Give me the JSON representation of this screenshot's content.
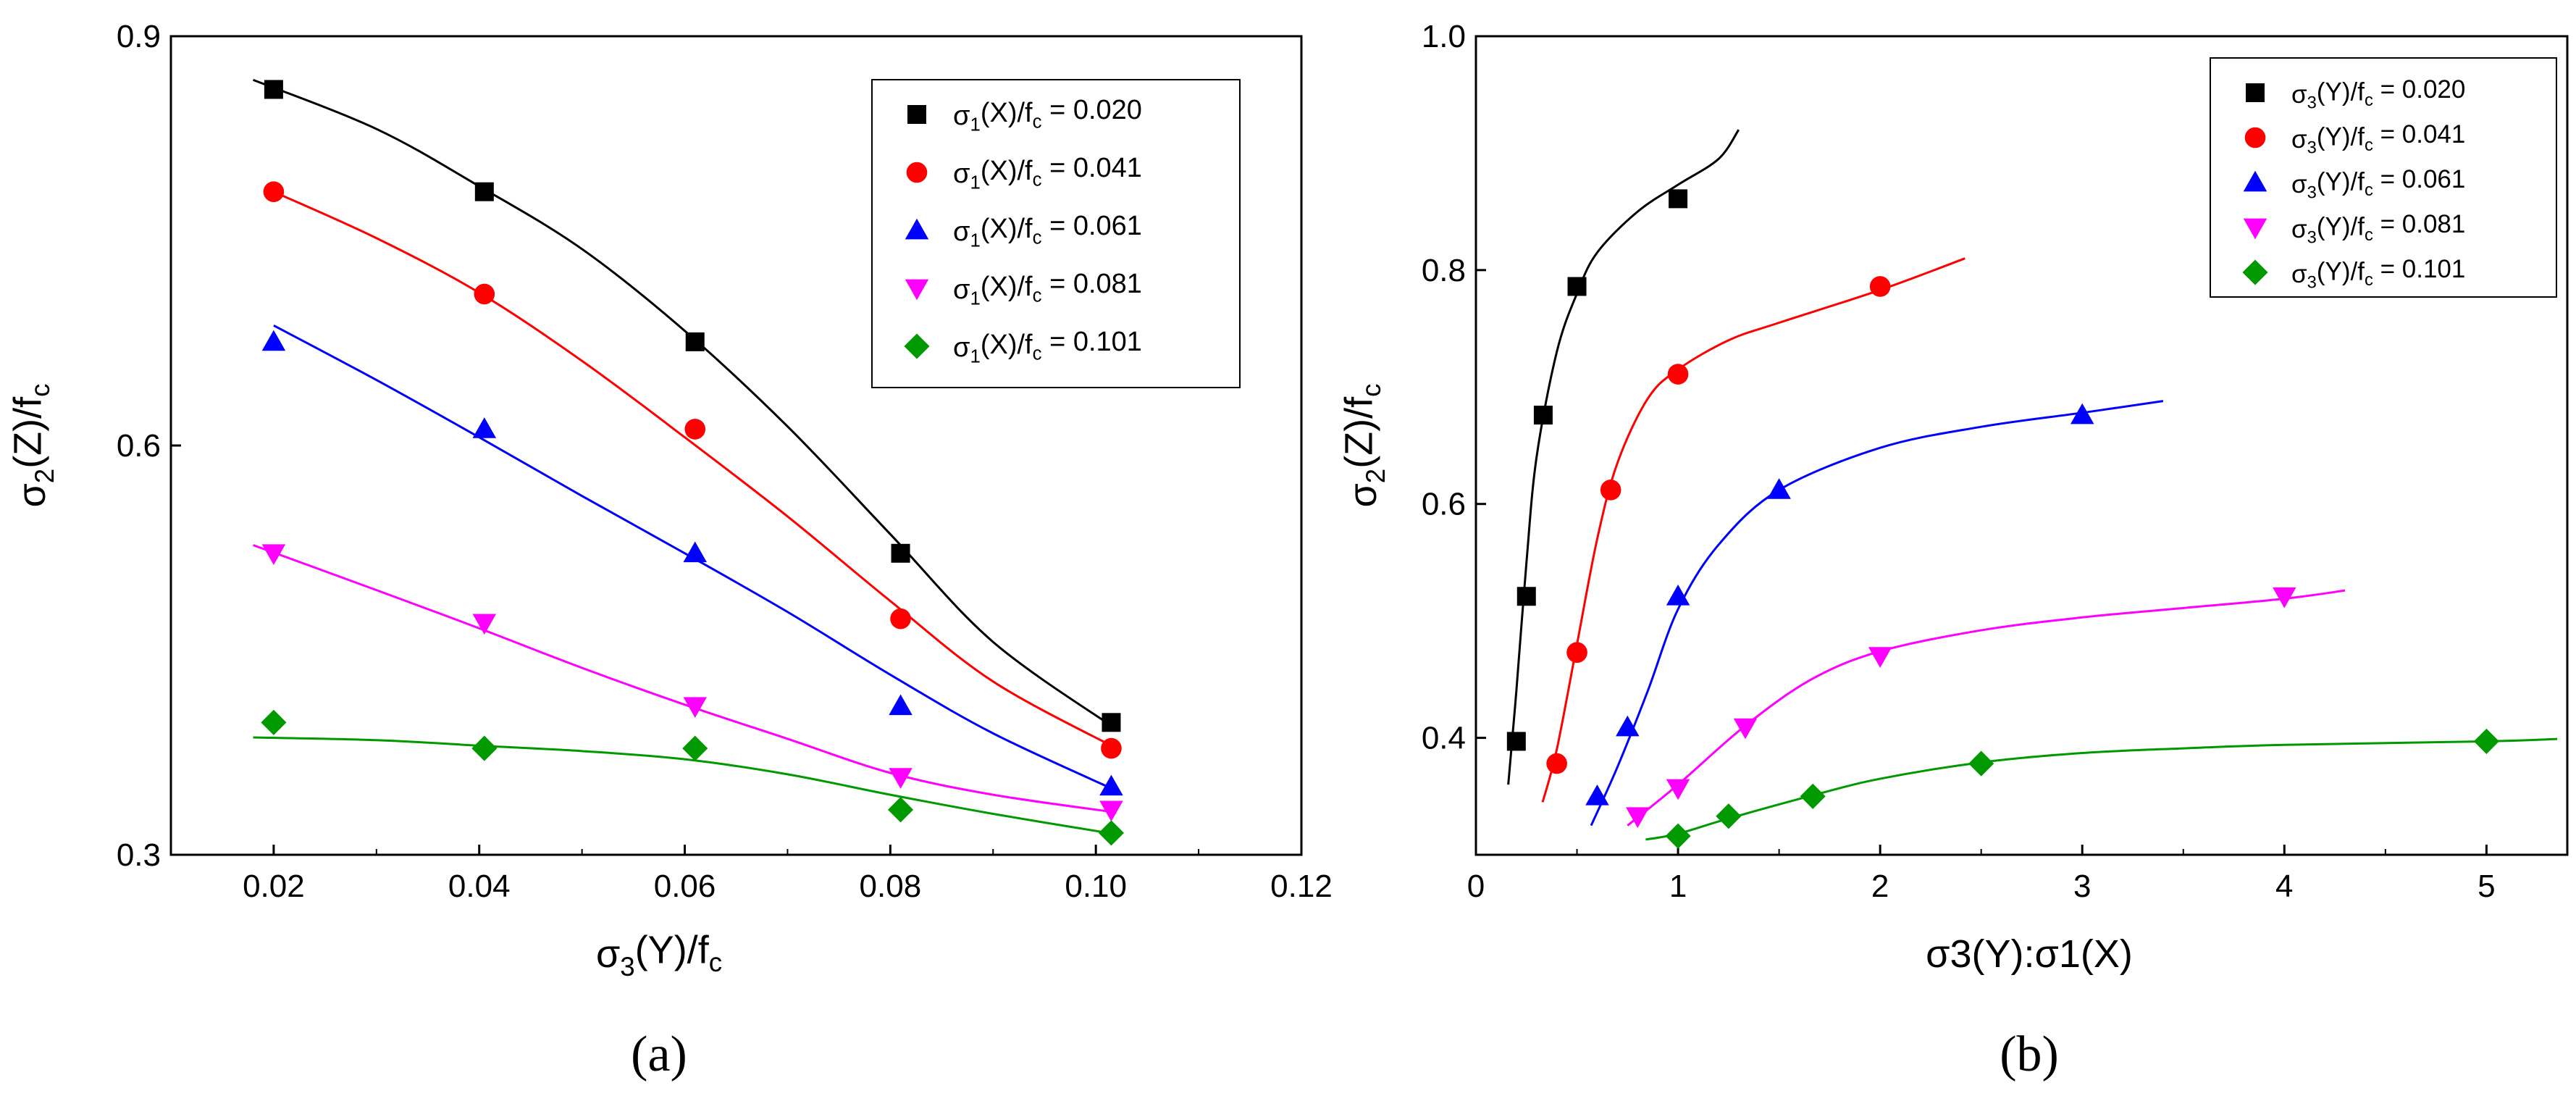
{
  "chart_data": [
    {
      "panel_label": "(a)",
      "type": "scatter",
      "xlabel": "σ3(Y)/fc",
      "ylabel": "σ2(Z)/fc",
      "xlim": [
        0.01,
        0.12
      ],
      "ylim": [
        0.3,
        0.9
      ],
      "x_ticks": [
        0.02,
        0.04,
        0.06,
        0.08,
        0.1,
        0.12
      ],
      "x_tick_labels": [
        "0.02",
        "0.04",
        "0.06",
        "0.08",
        "0.10",
        "0.12"
      ],
      "y_ticks": [
        0.3,
        0.6,
        0.9
      ],
      "y_tick_labels": [
        "0.3",
        "0.6",
        "0.9"
      ],
      "legend_position": "top-right",
      "series": [
        {
          "name": "σ1(X)/fc = 0.020",
          "label_main": "σ1(X)/f",
          "label_rest": "= 0.020",
          "color": "#000000",
          "marker": "square",
          "x": [
            0.02,
            0.0405,
            0.061,
            0.081,
            0.1015
          ],
          "y": [
            0.861,
            0.786,
            0.676,
            0.521,
            0.397
          ],
          "fit": [
            [
              0.018,
              0.868
            ],
            [
              0.03,
              0.832
            ],
            [
              0.04,
              0.79
            ],
            [
              0.05,
              0.744
            ],
            [
              0.06,
              0.684
            ],
            [
              0.07,
              0.614
            ],
            [
              0.08,
              0.535
            ],
            [
              0.09,
              0.456
            ],
            [
              0.102,
              0.392
            ]
          ]
        },
        {
          "name": "σ1(X)/fc = 0.041",
          "label_main": "σ1(X)/f",
          "label_rest": "= 0.041",
          "color": "#ff0000",
          "marker": "circle",
          "x": [
            0.02,
            0.0405,
            0.061,
            0.081,
            0.1015
          ],
          "y": [
            0.786,
            0.711,
            0.612,
            0.473,
            0.378
          ],
          "fit": [
            [
              0.02,
              0.786
            ],
            [
              0.03,
              0.752
            ],
            [
              0.04,
              0.712
            ],
            [
              0.05,
              0.662
            ],
            [
              0.06,
              0.606
            ],
            [
              0.07,
              0.548
            ],
            [
              0.08,
              0.486
            ],
            [
              0.09,
              0.427
            ],
            [
              0.102,
              0.378
            ]
          ]
        },
        {
          "name": "σ1(X)/fc = 0.061",
          "label_main": "σ1(X)/f",
          "label_rest": "= 0.061",
          "color": "#0000ff",
          "marker": "triangle-up",
          "x": [
            0.02,
            0.0405,
            0.061,
            0.081,
            0.1015
          ],
          "y": [
            0.676,
            0.612,
            0.521,
            0.409,
            0.35
          ],
          "fit": [
            [
              0.02,
              0.688
            ],
            [
              0.03,
              0.648
            ],
            [
              0.04,
              0.606
            ],
            [
              0.05,
              0.563
            ],
            [
              0.06,
              0.521
            ],
            [
              0.07,
              0.478
            ],
            [
              0.08,
              0.432
            ],
            [
              0.09,
              0.389
            ],
            [
              0.102,
              0.347
            ]
          ]
        },
        {
          "name": "σ1(X)/fc = 0.081",
          "label_main": "σ1(X)/f",
          "label_rest": "= 0.081",
          "color": "#ff00ff",
          "marker": "triangle-down",
          "x": [
            0.02,
            0.0405,
            0.061,
            0.081,
            0.1015
          ],
          "y": [
            0.521,
            0.47,
            0.409,
            0.357,
            0.333
          ],
          "fit": [
            [
              0.018,
              0.527
            ],
            [
              0.03,
              0.494
            ],
            [
              0.04,
              0.466
            ],
            [
              0.05,
              0.437
            ],
            [
              0.06,
              0.41
            ],
            [
              0.07,
              0.385
            ],
            [
              0.08,
              0.36
            ],
            [
              0.09,
              0.344
            ],
            [
              0.102,
              0.331
            ]
          ]
        },
        {
          "name": "σ1(X)/fc = 0.101",
          "label_main": "σ1(X)/f",
          "label_rest": "= 0.101",
          "color": "#009900",
          "marker": "diamond",
          "x": [
            0.02,
            0.0405,
            0.061,
            0.081,
            0.1015
          ],
          "y": [
            0.397,
            0.378,
            0.378,
            0.333,
            0.316
          ],
          "fit": [
            [
              0.018,
              0.386
            ],
            [
              0.03,
              0.384
            ],
            [
              0.04,
              0.38
            ],
            [
              0.05,
              0.376
            ],
            [
              0.06,
              0.37
            ],
            [
              0.07,
              0.359
            ],
            [
              0.08,
              0.344
            ],
            [
              0.09,
              0.33
            ],
            [
              0.102,
              0.315
            ]
          ]
        }
      ]
    },
    {
      "panel_label": "(b)",
      "type": "scatter",
      "xlabel": "σ3(Y):σ1(X)",
      "ylabel": "σ2(Z)/fc",
      "xlim": [
        0,
        5.4
      ],
      "ylim": [
        0.3,
        1.0
      ],
      "x_ticks": [
        0,
        1,
        2,
        3,
        4,
        5
      ],
      "x_tick_labels": [
        "0",
        "1",
        "2",
        "3",
        "4",
        "5"
      ],
      "y_ticks": [
        0.4,
        0.6,
        0.8,
        1.0
      ],
      "y_tick_labels": [
        "0.4",
        "0.6",
        "0.8",
        "1.0"
      ],
      "legend_position": "top-right",
      "series": [
        {
          "name": "σ3(Y)/fc= 0.020",
          "label_main": "σ3(Y)/f",
          "label_rest": "= 0.020",
          "color": "#000000",
          "marker": "square",
          "x": [
            0.2,
            0.25,
            0.333,
            0.5,
            1.0
          ],
          "y": [
            0.397,
            0.521,
            0.676,
            0.786,
            0.861
          ],
          "fit": [
            [
              0.16,
              0.36
            ],
            [
              0.2,
              0.44
            ],
            [
              0.25,
              0.55
            ],
            [
              0.3,
              0.64
            ],
            [
              0.4,
              0.73
            ],
            [
              0.5,
              0.78
            ],
            [
              0.6,
              0.815
            ],
            [
              0.8,
              0.85
            ],
            [
              1.0,
              0.873
            ],
            [
              1.2,
              0.895
            ],
            [
              1.3,
              0.92
            ]
          ]
        },
        {
          "name": "σ3(Y)/fc = 0.041",
          "label_main": "σ3(Y)/f",
          "label_rest": "= 0.041",
          "color": "#ff0000",
          "marker": "circle",
          "x": [
            0.4,
            0.5,
            0.667,
            1.0,
            2.0
          ],
          "y": [
            0.378,
            0.473,
            0.612,
            0.711,
            0.786
          ],
          "fit": [
            [
              0.33,
              0.345
            ],
            [
              0.4,
              0.39
            ],
            [
              0.5,
              0.48
            ],
            [
              0.6,
              0.57
            ],
            [
              0.7,
              0.635
            ],
            [
              0.85,
              0.69
            ],
            [
              1.0,
              0.715
            ],
            [
              1.25,
              0.74
            ],
            [
              1.5,
              0.755
            ],
            [
              2.0,
              0.783
            ],
            [
              2.42,
              0.81
            ]
          ]
        },
        {
          "name": "σ3(Y)/fc = 0.061",
          "label_main": "σ3(Y)/f",
          "label_rest": "= 0.061",
          "color": "#0000ff",
          "marker": "triangle-up",
          "x": [
            0.6,
            0.75,
            1.0,
            1.5,
            3.0
          ],
          "y": [
            0.35,
            0.409,
            0.521,
            0.612,
            0.676
          ],
          "fit": [
            [
              0.57,
              0.325
            ],
            [
              0.7,
              0.375
            ],
            [
              0.85,
              0.44
            ],
            [
              1.0,
              0.51
            ],
            [
              1.2,
              0.565
            ],
            [
              1.5,
              0.612
            ],
            [
              2.0,
              0.648
            ],
            [
              2.5,
              0.666
            ],
            [
              3.0,
              0.678
            ],
            [
              3.4,
              0.688
            ]
          ]
        },
        {
          "name": "σ3(Y)/fc = 0.081",
          "label_main": "σ3(Y)/f",
          "label_rest": "= 0.081",
          "color": "#ff00ff",
          "marker": "triangle-down",
          "x": [
            0.8,
            1.0,
            1.333,
            2.0,
            4.0
          ],
          "y": [
            0.333,
            0.357,
            0.409,
            0.47,
            0.521
          ],
          "fit": [
            [
              0.75,
              0.325
            ],
            [
              1.0,
              0.36
            ],
            [
              1.33,
              0.41
            ],
            [
              1.66,
              0.45
            ],
            [
              2.0,
              0.474
            ],
            [
              2.5,
              0.492
            ],
            [
              3.0,
              0.503
            ],
            [
              3.5,
              0.511
            ],
            [
              4.0,
              0.519
            ],
            [
              4.3,
              0.526
            ]
          ]
        },
        {
          "name": "σ3(Y)/fc = 0.101",
          "label_main": "σ3(Y)/f",
          "label_rest": "= 0.101",
          "color": "#009900",
          "marker": "diamond",
          "x": [
            1.0,
            1.25,
            1.667,
            2.5,
            5.0
          ],
          "y": [
            0.316,
            0.333,
            0.35,
            0.378,
            0.397
          ],
          "fit": [
            [
              0.84,
              0.313
            ],
            [
              1.0,
              0.318
            ],
            [
              1.25,
              0.331
            ],
            [
              1.67,
              0.351
            ],
            [
              2.0,
              0.365
            ],
            [
              2.5,
              0.379
            ],
            [
              3.0,
              0.387
            ],
            [
              3.5,
              0.391
            ],
            [
              4.0,
              0.394
            ],
            [
              5.0,
              0.397
            ],
            [
              5.35,
              0.399
            ]
          ]
        }
      ]
    }
  ]
}
